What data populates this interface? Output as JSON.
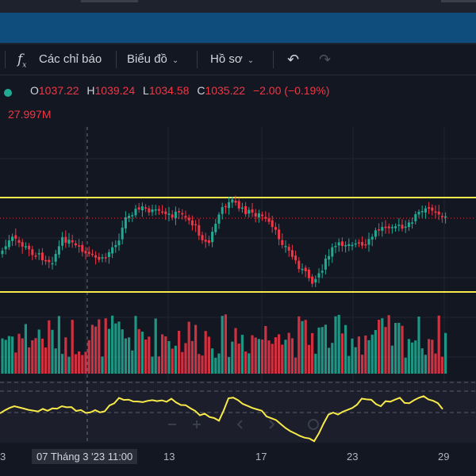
{
  "toolbar": {
    "indicators_label": "Các chỉ báo",
    "chart_type_label": "Biểu đồ",
    "profile_label": "Hồ sơ",
    "fx_icon": "function-icon",
    "undo_icon": "undo-icon",
    "redo_icon": "redo-icon"
  },
  "legend": {
    "o_label": "O",
    "o_value": "1037.22",
    "h_label": "H",
    "h_value": "1039.24",
    "l_label": "L",
    "l_value": "1034.58",
    "c_label": "C",
    "c_value": "1035.22",
    "change": "−2.00 (−0.19%)",
    "volume": "27.997M"
  },
  "xaxis": {
    "labels": [
      "3",
      "13",
      "17",
      "23",
      "29"
    ],
    "crosshair_label": "07 Tháng 3 '23   11:00"
  },
  "colors": {
    "up": "#22ab94",
    "down": "#f23645",
    "band": "#f7e94a",
    "bg": "#131722"
  },
  "chart_data": {
    "type": "candlestick",
    "x_ticks": [
      "3",
      "13",
      "17",
      "23",
      "29"
    ],
    "channel_lines": [
      "upper",
      "lower"
    ],
    "last_close": 1035.22,
    "oscillator": "line"
  }
}
